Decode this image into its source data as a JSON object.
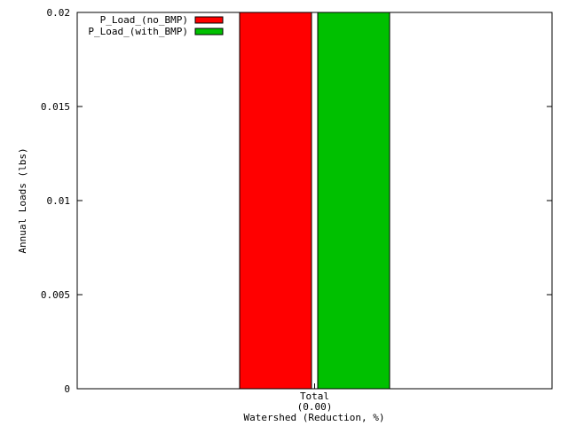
{
  "chart_data": {
    "type": "bar",
    "categories": [
      "Total"
    ],
    "category_sublabels": [
      "(0.00)"
    ],
    "series": [
      {
        "name": "P_Load_(no_BMP)",
        "values": [
          0.02
        ],
        "color": "#ff0000"
      },
      {
        "name": "P_Load_(with_BMP)",
        "values": [
          0.02
        ],
        "color": "#00c000"
      }
    ],
    "xlabel": "Watershed (Reduction, %)",
    "ylabel": "Annual Loads (lbs)",
    "ylim": [
      0,
      0.02
    ],
    "yticks": [
      "0",
      "0.005",
      "0.01",
      "0.015",
      "0.02"
    ],
    "grid": false,
    "legend_position": "top-left"
  }
}
